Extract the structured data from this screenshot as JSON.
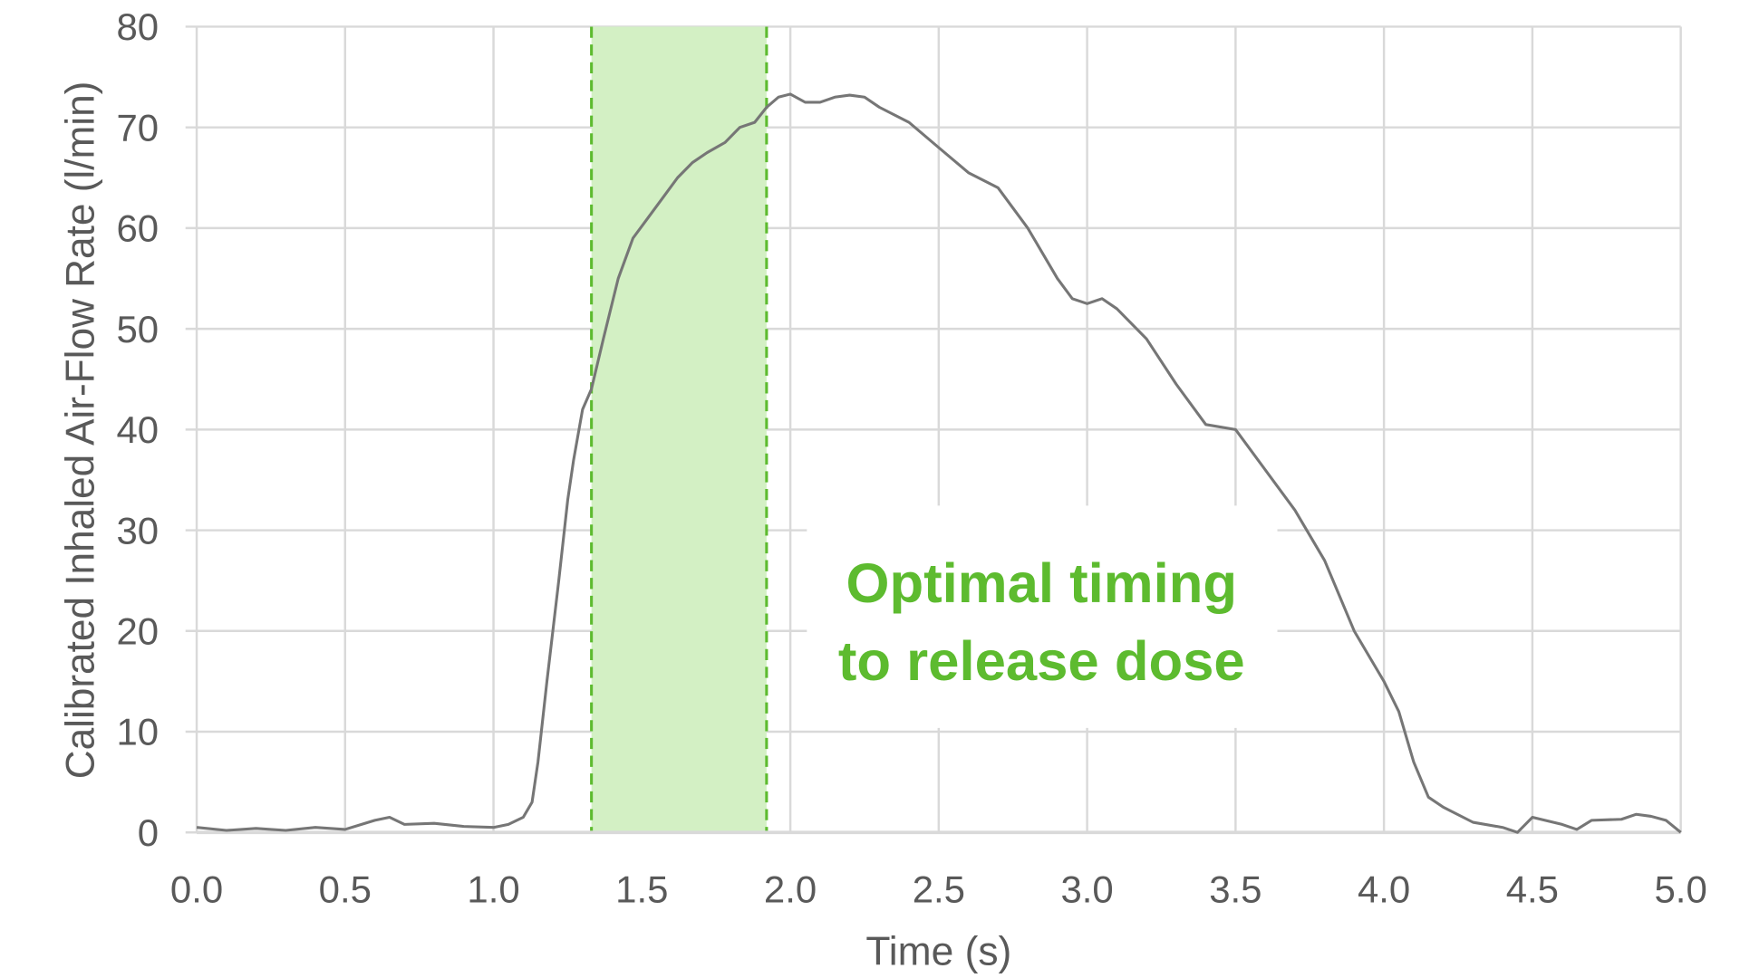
{
  "chart_data": {
    "type": "line",
    "xlabel": "Time (s)",
    "ylabel": "Calibrated Inhaled Air-Flow Rate (l/min)",
    "xlim": [
      0,
      5
    ],
    "ylim": [
      0,
      80
    ],
    "xticks": [
      "0.0",
      "0.5",
      "1.0",
      "1.5",
      "2.0",
      "2.5",
      "3.0",
      "3.5",
      "4.0",
      "4.5",
      "5.0"
    ],
    "yticks": [
      "0",
      "10",
      "20",
      "30",
      "40",
      "50",
      "60",
      "70",
      "80"
    ],
    "grid": true,
    "series": [
      {
        "color": "#767676",
        "x": [
          0,
          0.1,
          0.2,
          0.3,
          0.4,
          0.5,
          0.6,
          0.65,
          0.7,
          0.8,
          0.9,
          1.0,
          1.05,
          1.1,
          1.13,
          1.15,
          1.18,
          1.22,
          1.25,
          1.27,
          1.3,
          1.33,
          1.37,
          1.42,
          1.47,
          1.52,
          1.57,
          1.62,
          1.67,
          1.72,
          1.78,
          1.83,
          1.88,
          1.92,
          1.96,
          2.0,
          2.05,
          2.1,
          2.15,
          2.2,
          2.25,
          2.3,
          2.4,
          2.5,
          2.6,
          2.7,
          2.8,
          2.9,
          2.95,
          3.0,
          3.05,
          3.1,
          3.2,
          3.3,
          3.4,
          3.5,
          3.6,
          3.7,
          3.8,
          3.9,
          4.0,
          4.05,
          4.1,
          4.15,
          4.2,
          4.3,
          4.4,
          4.45,
          4.5,
          4.6,
          4.65,
          4.7,
          4.8,
          4.85,
          4.9,
          4.95,
          5.0
        ],
        "y": [
          0.5,
          0.2,
          0.4,
          0.2,
          0.5,
          0.3,
          1.2,
          1.5,
          0.8,
          0.9,
          0.6,
          0.5,
          0.8,
          1.5,
          3,
          7,
          15,
          25,
          33,
          37,
          42,
          44,
          49,
          55,
          59,
          61,
          63,
          65,
          66.5,
          67.5,
          68.5,
          70,
          70.5,
          72,
          73,
          73.3,
          72.5,
          72.5,
          73,
          73.2,
          73,
          72,
          70.5,
          68,
          65.5,
          64,
          60,
          55,
          53,
          52.5,
          53,
          52,
          49,
          44.5,
          40.5,
          40,
          36,
          32,
          27,
          20,
          15,
          12,
          7,
          3.5,
          2.5,
          1,
          0.5,
          0,
          1.5,
          0.8,
          0.3,
          1.2,
          1.3,
          1.8,
          1.6,
          1.2,
          0
        ]
      }
    ],
    "highlight_band": {
      "x_start": 1.33,
      "x_end": 1.92,
      "fill": "#d3f0c4",
      "edge_color": "#5dbb2f"
    },
    "annotation": {
      "lines": [
        "Optimal timing",
        "to release dose"
      ],
      "color": "#5dbb2f"
    }
  }
}
